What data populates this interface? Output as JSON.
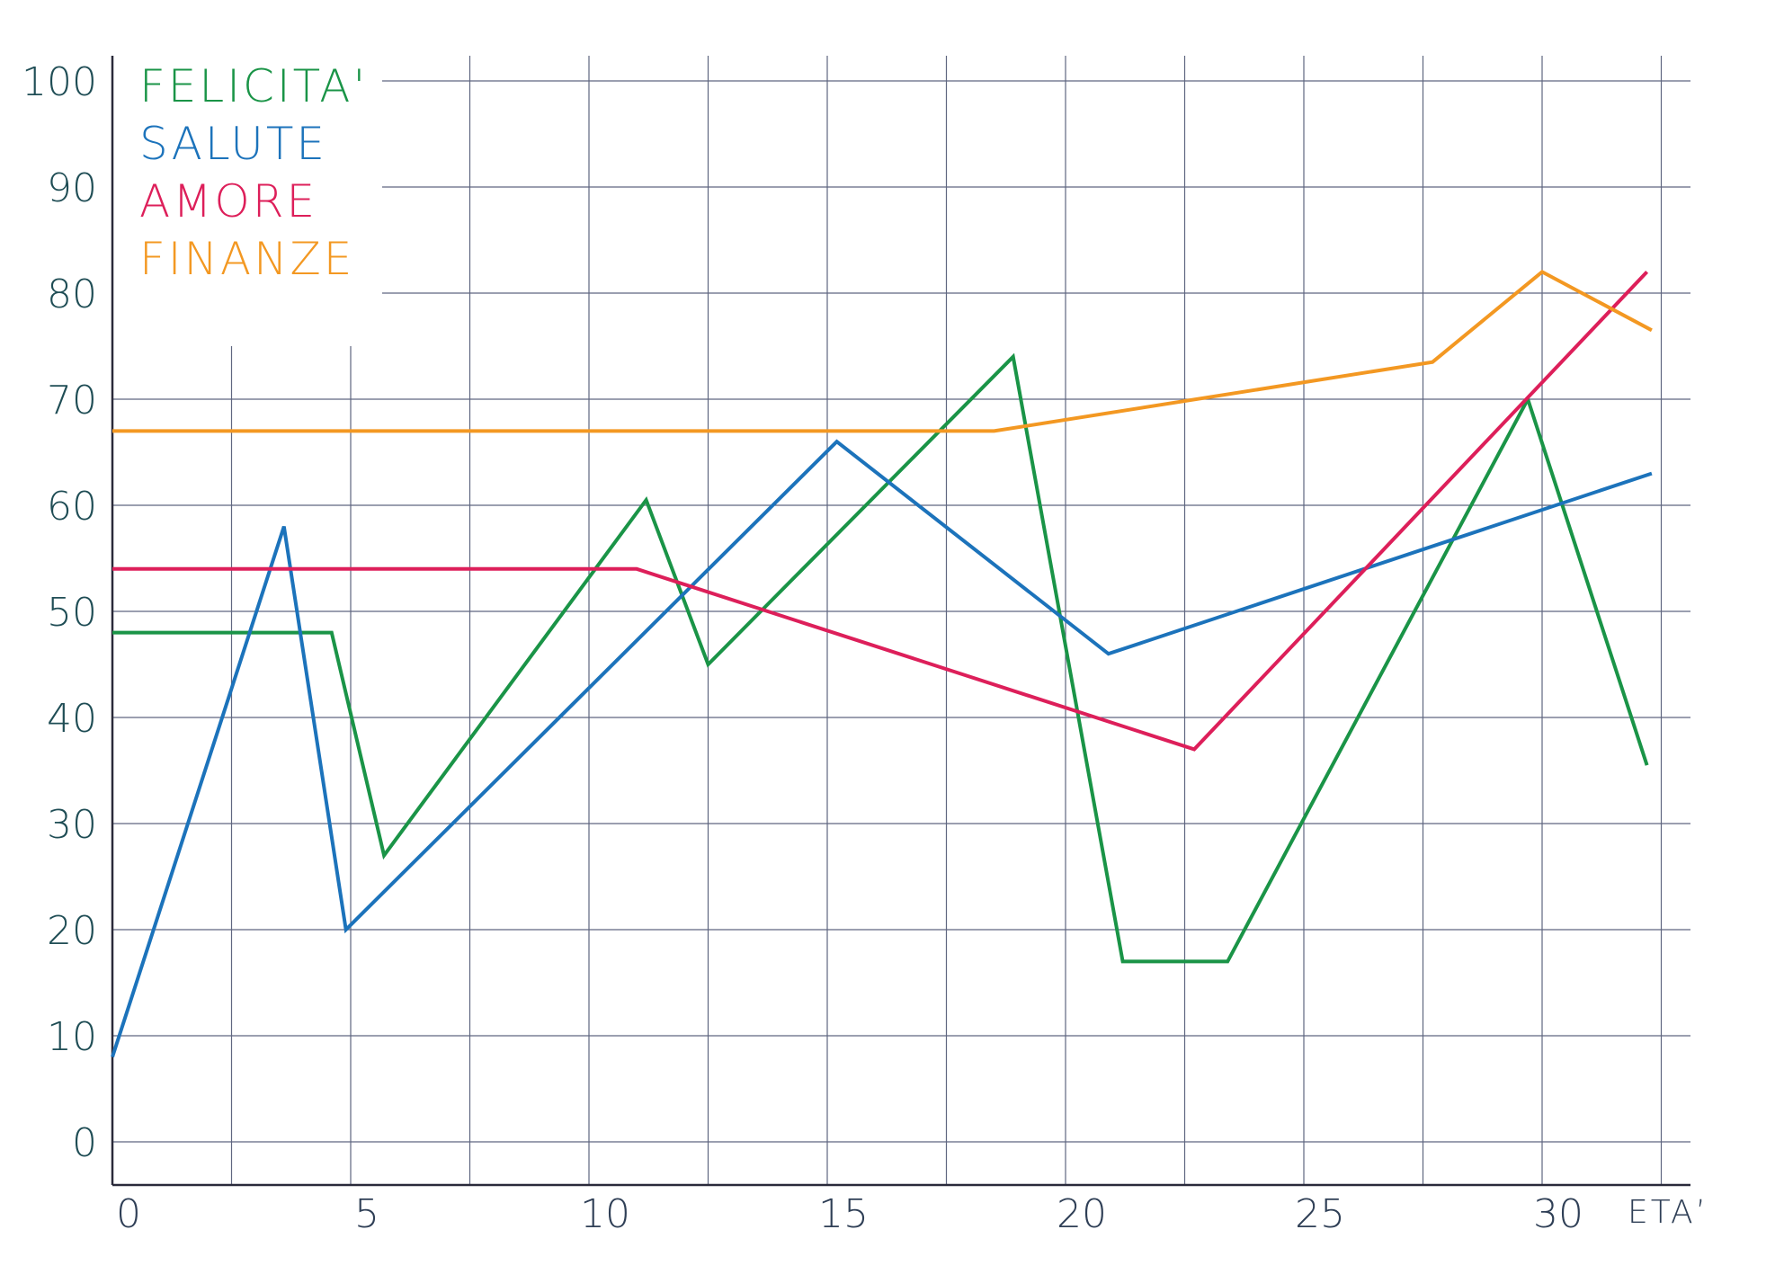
{
  "chart_data": {
    "type": "line",
    "xlabel": "ETA’",
    "ylabel": "",
    "x_ticks": [
      "0",
      "5",
      "10",
      "15",
      "20",
      "25",
      "30"
    ],
    "y_ticks": [
      "0",
      "10",
      "20",
      "30",
      "40",
      "50",
      "60",
      "70",
      "80",
      "90",
      "100"
    ],
    "xlim": [
      0,
      34
    ],
    "ylim": [
      0,
      100
    ],
    "grid": true,
    "legend_position": "top-left",
    "series": [
      {
        "name": "FELICITA'",
        "color": "#1a9447",
        "points": [
          [
            0,
            48
          ],
          [
            4.6,
            48
          ],
          [
            5.7,
            27
          ],
          [
            11.2,
            60.5
          ],
          [
            12.5,
            45
          ],
          [
            18.9,
            74
          ],
          [
            21.2,
            17
          ],
          [
            23.4,
            17
          ],
          [
            29.7,
            70
          ],
          [
            32.2,
            35.5
          ]
        ]
      },
      {
        "name": "SALUTE",
        "color": "#1c73bb",
        "points": [
          [
            0,
            8
          ],
          [
            3.6,
            58
          ],
          [
            4.9,
            20
          ],
          [
            15.2,
            66
          ],
          [
            20.9,
            46
          ],
          [
            32.3,
            63
          ]
        ]
      },
      {
        "name": "AMORE",
        "color": "#dd1f5a",
        "points": [
          [
            0,
            54
          ],
          [
            11,
            54
          ],
          [
            22.7,
            37
          ],
          [
            32.2,
            82
          ]
        ]
      },
      {
        "name": "FINANZE",
        "color": "#f39822",
        "points": [
          [
            0,
            67
          ],
          [
            18.5,
            67
          ],
          [
            27.7,
            73.5
          ],
          [
            30,
            82
          ],
          [
            32.3,
            76.5
          ]
        ]
      }
    ]
  }
}
